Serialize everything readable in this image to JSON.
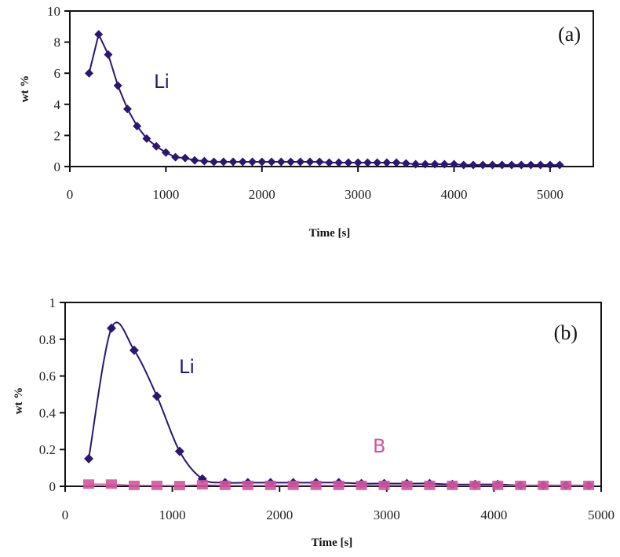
{
  "chart_data": [
    {
      "type": "line",
      "panel_label": "(a)",
      "title": "",
      "xlabel": "Time [s]",
      "ylabel": "wt %",
      "xlim": [
        0,
        5450
      ],
      "ylim": [
        0,
        10
      ],
      "xticks": [
        0,
        1000,
        2000,
        3000,
        4000,
        5000
      ],
      "xtick_labels": [
        "0",
        "1000",
        "2000",
        "3000",
        "4000",
        "5000"
      ],
      "yticks": [
        0,
        2,
        4,
        6,
        8,
        10
      ],
      "ytick_labels": [
        "0",
        "2",
        "4",
        "6",
        "8",
        "10"
      ],
      "grid": false,
      "series": [
        {
          "name": "Li",
          "label": "Li",
          "color": "#2b1670",
          "marker": "diamond",
          "smooth": false,
          "x": [
            200,
            300,
            400,
            500,
            600,
            700,
            800,
            900,
            1000,
            1100,
            1200,
            1300,
            1400,
            1500,
            1600,
            1700,
            1800,
            1900,
            2000,
            2100,
            2200,
            2300,
            2400,
            2500,
            2600,
            2700,
            2800,
            2900,
            3000,
            3100,
            3200,
            3300,
            3400,
            3500,
            3600,
            3700,
            3800,
            3900,
            4000,
            4100,
            4200,
            4300,
            4400,
            4500,
            4600,
            4700,
            4800,
            4900,
            5000,
            5100
          ],
          "y": [
            6.0,
            8.5,
            7.2,
            5.2,
            3.7,
            2.6,
            1.8,
            1.3,
            0.9,
            0.6,
            0.55,
            0.4,
            0.35,
            0.3,
            0.3,
            0.3,
            0.3,
            0.3,
            0.3,
            0.3,
            0.3,
            0.3,
            0.3,
            0.3,
            0.3,
            0.25,
            0.25,
            0.25,
            0.25,
            0.25,
            0.25,
            0.25,
            0.25,
            0.2,
            0.15,
            0.15,
            0.15,
            0.15,
            0.15,
            0.1,
            0.1,
            0.1,
            0.1,
            0.1,
            0.1,
            0.1,
            0.1,
            0.1,
            0.1,
            0.1
          ]
        }
      ]
    },
    {
      "type": "line",
      "panel_label": "(b)",
      "title": "",
      "xlabel": "Time [s]",
      "ylabel": "wt %",
      "xlim": [
        0,
        5000
      ],
      "ylim": [
        0,
        1
      ],
      "xticks": [
        0,
        1000,
        2000,
        3000,
        4000,
        5000
      ],
      "xtick_labels": [
        "0",
        "1000",
        "2000",
        "3000",
        "4000",
        "5000"
      ],
      "yticks": [
        0,
        0.2,
        0.4,
        0.6,
        0.8,
        1
      ],
      "ytick_labels": [
        "0",
        "0.2",
        "0.4",
        "0.6",
        "0.8",
        "1"
      ],
      "grid": false,
      "series": [
        {
          "name": "Li",
          "label": "Li",
          "color": "#2b1670",
          "marker": "diamond",
          "smooth": true,
          "x": [
            220,
            432,
            644,
            856,
            1068,
            1280,
            1492,
            1704,
            1916,
            2128,
            2340,
            2552,
            2764,
            2976,
            3188,
            3400,
            3612,
            3824,
            4036,
            4248,
            4460,
            4672,
            4884
          ],
          "y": [
            0.15,
            0.86,
            0.74,
            0.49,
            0.19,
            0.04,
            0.02,
            0.02,
            0.02,
            0.02,
            0.02,
            0.02,
            0.015,
            0.015,
            0.015,
            0.015,
            0.01,
            0.01,
            0.01,
            0.005,
            0.005,
            0.005,
            0.005
          ]
        },
        {
          "name": "B",
          "label": "B",
          "color": "#d2559f",
          "marker": "square",
          "smooth": false,
          "x": [
            220,
            432,
            644,
            856,
            1068,
            1280,
            1492,
            1704,
            1916,
            2128,
            2340,
            2552,
            2764,
            2976,
            3188,
            3400,
            3612,
            3824,
            4036,
            4248,
            4460,
            4672,
            4884
          ],
          "y": [
            0.012,
            0.012,
            0.005,
            0.005,
            0.004,
            0.008,
            0.005,
            0.005,
            0.005,
            0.005,
            0.005,
            0.005,
            0.005,
            0.005,
            0.005,
            0.005,
            0.005,
            0.005,
            0.005,
            0.005,
            0.005,
            0.005,
            0.005
          ]
        }
      ]
    }
  ]
}
